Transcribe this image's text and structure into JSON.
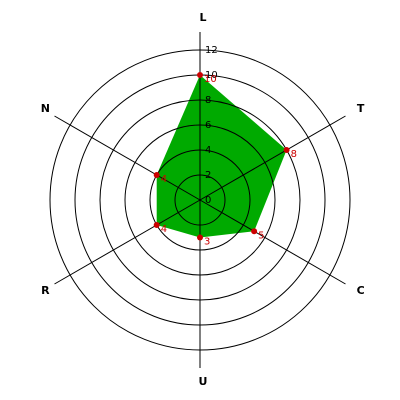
{
  "chart_data": {
    "type": "radar",
    "categories": [
      "L",
      "T",
      "C",
      "U",
      "R",
      "N"
    ],
    "values": [
      10,
      8,
      5,
      3,
      4,
      4
    ],
    "color": "#00aa00",
    "marker_color": "#cc0000",
    "rlim": [
      0,
      12
    ],
    "rticks": [
      0,
      2,
      4,
      6,
      8,
      10,
      12
    ],
    "grid": true
  }
}
